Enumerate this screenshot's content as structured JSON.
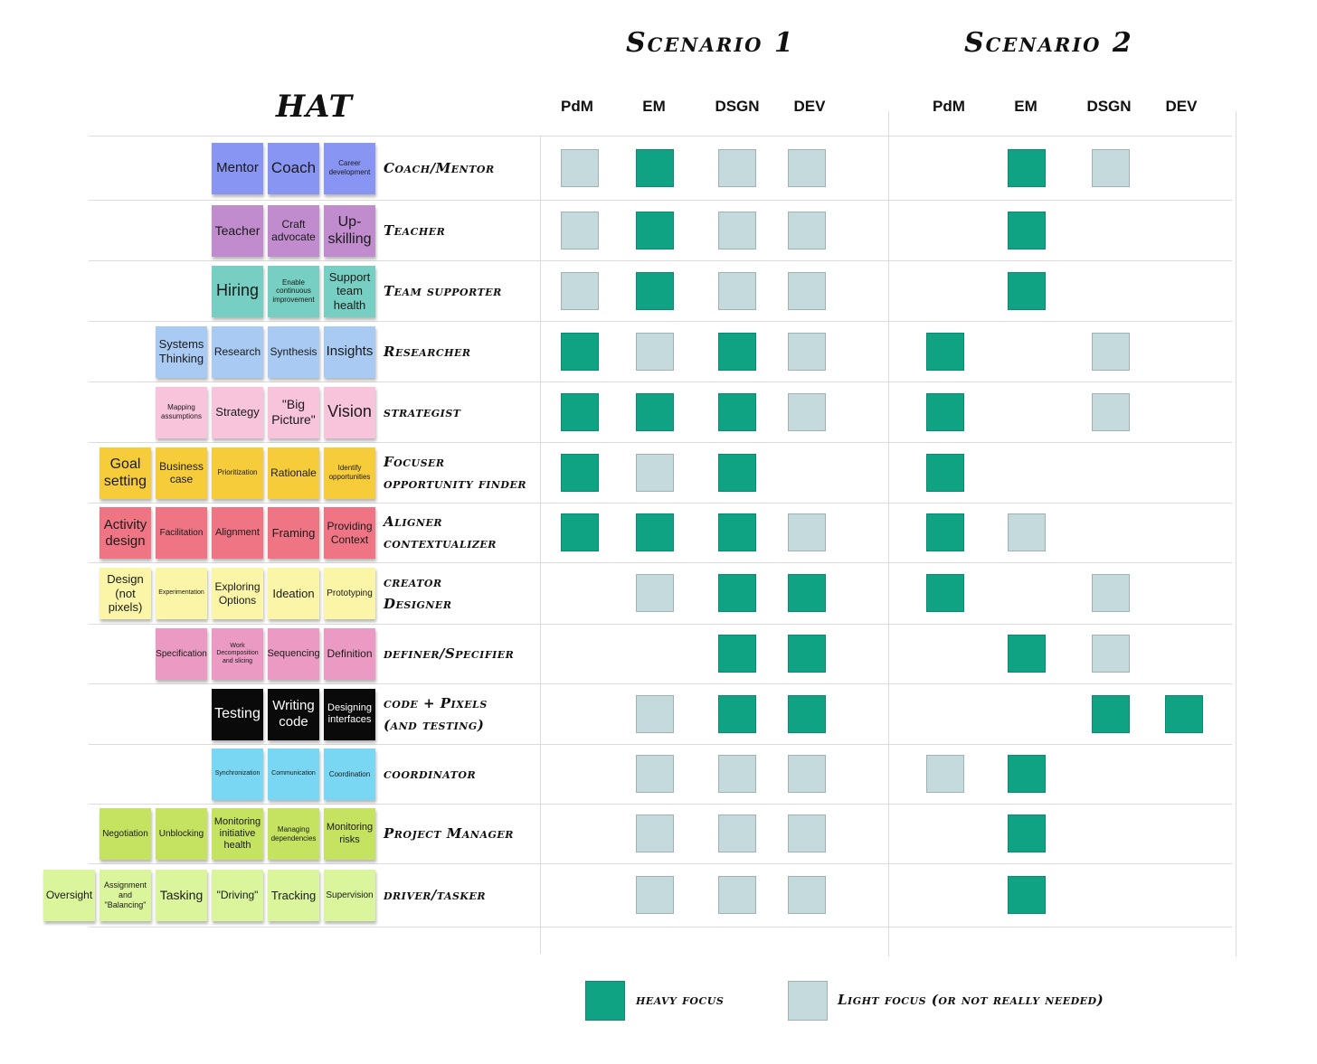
{
  "colors": {
    "heavy": "#0fa384",
    "light": "#c5dadc"
  },
  "hat_title": "HAT",
  "scenarios": [
    {
      "title": "Scenario 1",
      "columns": [
        "PdM",
        "EM",
        "DSGN",
        "DEV"
      ]
    },
    {
      "title": "Scenario 2",
      "columns": [
        "PdM",
        "EM",
        "DSGN",
        "DEV"
      ]
    }
  ],
  "rows": [
    {
      "role": [
        "Coach/Mentor"
      ],
      "color": "#8895f3",
      "stickies": [
        {
          "text": "Mentor",
          "size": 15
        },
        {
          "text": "Coach",
          "size": 17
        },
        {
          "text": "Career development",
          "size": 8
        }
      ],
      "s1": [
        "light",
        "heavy",
        "light",
        "light"
      ],
      "s2": [
        "",
        "heavy",
        "light",
        ""
      ]
    },
    {
      "role": [
        "Teacher"
      ],
      "color": "#c08ccd",
      "stickies": [
        {
          "text": "Teacher",
          "size": 14
        },
        {
          "text": "Craft advocate",
          "size": 12
        },
        {
          "text": "Up-skilling",
          "size": 16
        }
      ],
      "s1": [
        "light",
        "heavy",
        "light",
        "light"
      ],
      "s2": [
        "",
        "heavy",
        "",
        ""
      ]
    },
    {
      "role": [
        "Team supporter"
      ],
      "color": "#76cfc2",
      "stickies": [
        {
          "text": "Hiring",
          "size": 18
        },
        {
          "text": "Enable continuous improvement",
          "size": 8
        },
        {
          "text": "Support team health",
          "size": 13
        }
      ],
      "s1": [
        "light",
        "heavy",
        "light",
        "light"
      ],
      "s2": [
        "",
        "heavy",
        "",
        ""
      ]
    },
    {
      "role": [
        "Researcher"
      ],
      "color": "#a9cbf3",
      "stickies": [
        {
          "text": "Systems Thinking",
          "size": 13
        },
        {
          "text": "Research",
          "size": 12
        },
        {
          "text": "Synthesis",
          "size": 12
        },
        {
          "text": "Insights",
          "size": 15
        }
      ],
      "s1": [
        "heavy",
        "light",
        "heavy",
        "light"
      ],
      "s2": [
        "heavy",
        "",
        "light",
        ""
      ]
    },
    {
      "role": [
        "strategist"
      ],
      "color": "#f8c4dc",
      "stickies": [
        {
          "text": "Mapping assumptions",
          "size": 8
        },
        {
          "text": "Strategy",
          "size": 13
        },
        {
          "text": "\"Big Picture\"",
          "size": 14
        },
        {
          "text": "Vision",
          "size": 18
        }
      ],
      "s1": [
        "heavy",
        "heavy",
        "heavy",
        "light"
      ],
      "s2": [
        "heavy",
        "",
        "light",
        ""
      ]
    },
    {
      "role": [
        "Focuser",
        "opportunity finder"
      ],
      "color": "#f6cc3a",
      "stickies": [
        {
          "text": "Goal setting",
          "size": 16
        },
        {
          "text": "Business case",
          "size": 12
        },
        {
          "text": "Prioritization",
          "size": 8
        },
        {
          "text": "Rationale",
          "size": 12
        },
        {
          "text": "Identify opportunities",
          "size": 8
        }
      ],
      "s1": [
        "heavy",
        "light",
        "heavy",
        ""
      ],
      "s2": [
        "heavy",
        "",
        "",
        ""
      ]
    },
    {
      "role": [
        "Aligner",
        "contextualizer"
      ],
      "color": "#ef7585",
      "stickies": [
        {
          "text": "Activity design",
          "size": 15
        },
        {
          "text": "Facilitation",
          "size": 10
        },
        {
          "text": "Alignment",
          "size": 11
        },
        {
          "text": "Framing",
          "size": 13
        },
        {
          "text": "Providing Context",
          "size": 12
        }
      ],
      "s1": [
        "heavy",
        "heavy",
        "heavy",
        "light"
      ],
      "s2": [
        "heavy",
        "light",
        "",
        ""
      ]
    },
    {
      "role": [
        "creator",
        "Designer"
      ],
      "color": "#fbf5a8",
      "stickies": [
        {
          "text": "Design (not pixels)",
          "size": 13
        },
        {
          "text": "Experimentation",
          "size": 7
        },
        {
          "text": "Exploring Options",
          "size": 12
        },
        {
          "text": "Ideation",
          "size": 13
        },
        {
          "text": "Prototyping",
          "size": 10
        }
      ],
      "s1": [
        "",
        "light",
        "heavy",
        "heavy"
      ],
      "s2": [
        "heavy",
        "",
        "light",
        ""
      ]
    },
    {
      "role": [
        "definer/Specifier"
      ],
      "color": "#eb9ac3",
      "stickies": [
        {
          "text": "Specification",
          "size": 10
        },
        {
          "text": "Work Decomposition and slicing",
          "size": 7
        },
        {
          "text": "Sequencing",
          "size": 11
        },
        {
          "text": "Definition",
          "size": 12
        }
      ],
      "s1": [
        "",
        "",
        "heavy",
        "heavy"
      ],
      "s2": [
        "",
        "heavy",
        "light",
        ""
      ]
    },
    {
      "role": [
        "code + Pixels",
        "(and testing)"
      ],
      "color": "#0a0a0a",
      "stickies": [
        {
          "text": "Testing",
          "size": 16
        },
        {
          "text": "Writing code",
          "size": 15
        },
        {
          "text": "Designing interfaces",
          "size": 11
        }
      ],
      "s1": [
        "",
        "light",
        "heavy",
        "heavy"
      ],
      "s2": [
        "",
        "",
        "heavy",
        "heavy"
      ]
    },
    {
      "role": [
        "coordinator"
      ],
      "color": "#79d7f4",
      "stickies": [
        {
          "text": "Synchronization",
          "size": 7
        },
        {
          "text": "Communication",
          "size": 7
        },
        {
          "text": "Coordination",
          "size": 8
        }
      ],
      "s1": [
        "",
        "light",
        "light",
        "light"
      ],
      "s2": [
        "light",
        "heavy",
        "",
        ""
      ]
    },
    {
      "role": [
        "Project Manager"
      ],
      "color": "#c5e261",
      "stickies": [
        {
          "text": "Negotiation",
          "size": 10
        },
        {
          "text": "Unblocking",
          "size": 10
        },
        {
          "text": "Monitoring initiative health",
          "size": 11
        },
        {
          "text": "Managing dependencies",
          "size": 8
        },
        {
          "text": "Monitoring risks",
          "size": 11
        }
      ],
      "s1": [
        "",
        "light",
        "light",
        "light"
      ],
      "s2": [
        "",
        "heavy",
        "",
        ""
      ]
    },
    {
      "role": [
        "driver/tasker"
      ],
      "color": "#dbf59c",
      "stickies": [
        {
          "text": "Oversight",
          "size": 12
        },
        {
          "text": "Assignment and \"Balancing\"",
          "size": 9
        },
        {
          "text": "Tasking",
          "size": 14
        },
        {
          "text": "\"Driving\"",
          "size": 12
        },
        {
          "text": "Tracking",
          "size": 13
        },
        {
          "text": "Supervision",
          "size": 10
        }
      ],
      "s1": [
        "",
        "light",
        "light",
        "light"
      ],
      "s2": [
        "",
        "heavy",
        "",
        ""
      ]
    }
  ],
  "legend": {
    "heavy_label": "heavy focus",
    "light_label": "Light focus (or not really needed)"
  }
}
